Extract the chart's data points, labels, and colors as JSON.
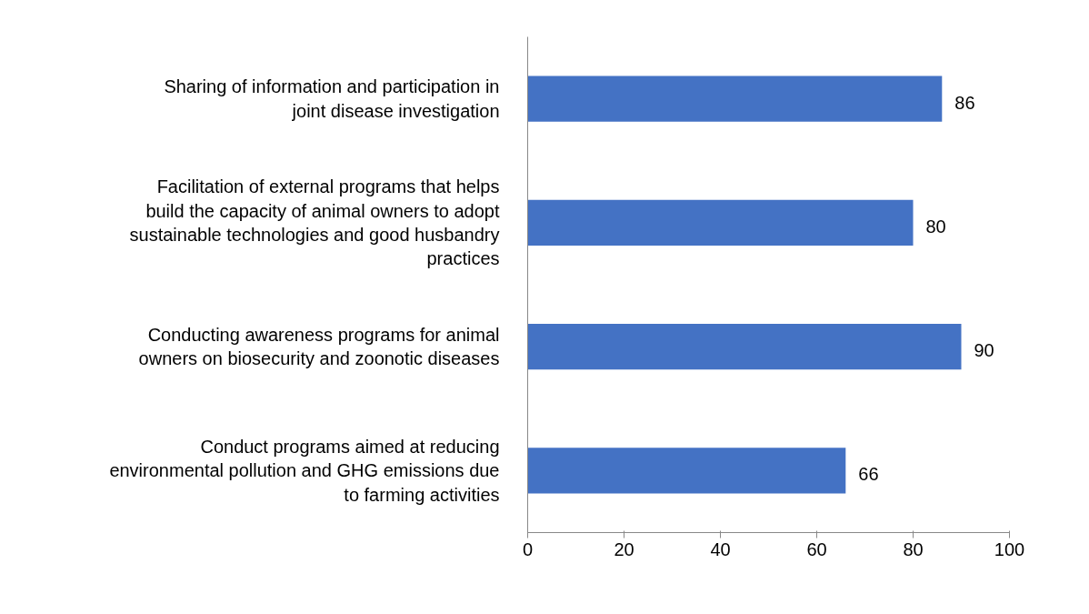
{
  "chart_data": {
    "type": "bar",
    "orientation": "horizontal",
    "categories": [
      "Sharing of information and participation in joint disease investigation",
      "Facilitation of external programs that helps build the capacity of animal owners to adopt sustainable technologies and good husbandry practices",
      "Conducting awareness programs for animal owners on biosecurity and zoonotic diseases",
      "Conduct programs aimed at reducing environmental pollution and GHG emissions due to farming activities"
    ],
    "values": [
      86,
      80,
      90,
      66
    ],
    "color": "#4472c4",
    "xlim": [
      0,
      100
    ],
    "xticks": [
      0,
      20,
      40,
      60,
      80,
      100
    ],
    "grid": false,
    "data_labels": true
  }
}
